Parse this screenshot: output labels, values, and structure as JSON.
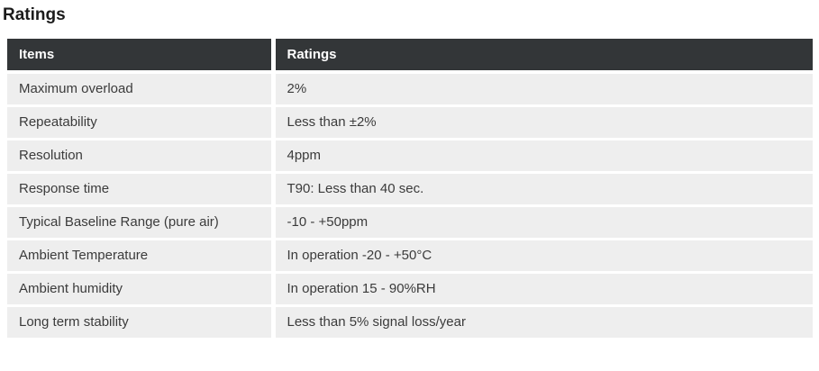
{
  "page": {
    "title": "Ratings"
  },
  "table": {
    "columns": [
      "Items",
      "Ratings"
    ],
    "rows": [
      {
        "item": "Maximum overload",
        "rating": "2%"
      },
      {
        "item": "Repeatability",
        "rating": "Less than ±2%"
      },
      {
        "item": "Resolution",
        "rating": "4ppm"
      },
      {
        "item": "Response time",
        "rating": "T90: Less than 40 sec."
      },
      {
        "item": "Typical Baseline Range (pure air)",
        "rating": "-10 - +50ppm"
      },
      {
        "item": "Ambient Temperature",
        "rating": "In operation -20 - +50°C"
      },
      {
        "item": "Ambient humidity",
        "rating": "In operation 15 - 90%RH"
      },
      {
        "item": "Long term stability",
        "rating": "Less than 5% signal loss/year"
      }
    ]
  },
  "colors": {
    "header_bg": "#333638",
    "header_text": "#ffffff",
    "row_bg": "#eeeeee",
    "body_text": "#3b3b3b",
    "title_text": "#1c1c1c",
    "page_bg": "#ffffff"
  }
}
